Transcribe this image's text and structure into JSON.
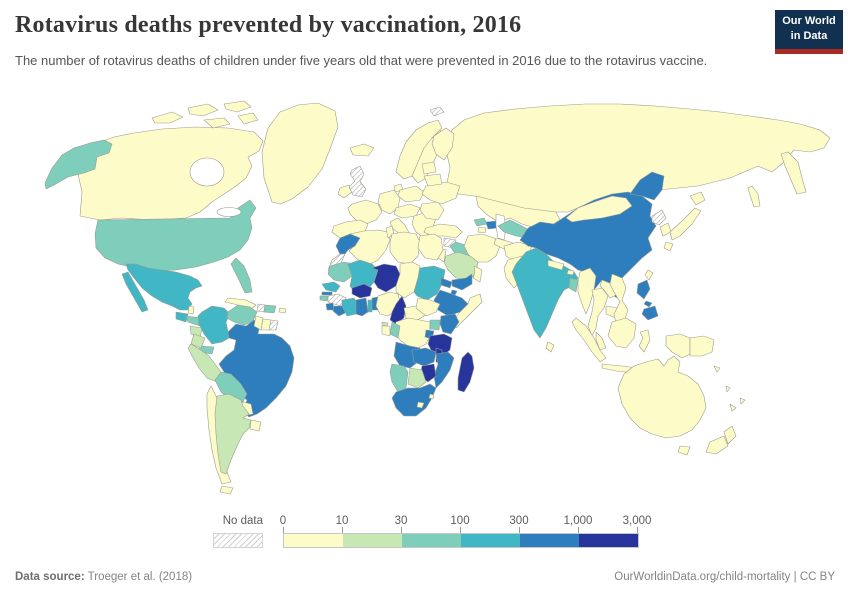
{
  "header": {
    "title": "Rotavirus deaths prevented by vaccination, 2016",
    "subtitle": "The number of rotavirus deaths of children under five years old that were prevented in 2016 due to the rotavirus vaccine.",
    "logo": {
      "line1": "Our World",
      "line2": "in Data",
      "bg_color": "#12304f",
      "stripe_color": "#a82c25"
    }
  },
  "legend": {
    "no_data_label": "No data",
    "tick_labels": [
      "0",
      "10",
      "30",
      "100",
      "300",
      "1,000",
      "3,000"
    ],
    "buckets": [
      "0-10",
      "10-30",
      "30-100",
      "100-300",
      "300-1,000",
      "1,000-3,000"
    ]
  },
  "map": {
    "palette": {
      "0-10": "#fdfbc7",
      "10-30": "#c7e8b4",
      "30-100": "#7fcdbb",
      "100-300": "#41b6c4",
      "300-1,000": "#2e7ebd",
      "1,000-3,000": "#27349c"
    },
    "no_data_key": "no-data",
    "border_color": "#9c9c90",
    "ocean_color": "#ffffff",
    "countries": {
      "russia": "0-10",
      "canada": "0-10",
      "greenland": "0-10",
      "united-states": "30-100",
      "mexico": "100-300",
      "guatemala": "100-300",
      "belize": "0-10",
      "honduras": "30-100",
      "nicaragua": "10-30",
      "costa-rica": "10-30",
      "panama": "30-100",
      "cuba": "0-10",
      "jamaica": "0-10",
      "haiti": "no-data",
      "dominican-republic": "30-100",
      "puerto-rico": "0-10",
      "brazil": "300-1,000",
      "colombia": "100-300",
      "venezuela": "30-100",
      "guyana": "0-10",
      "suriname": "0-10",
      "french-guiana": "no-data",
      "ecuador": "10-30",
      "peru": "10-30",
      "bolivia": "30-100",
      "paraguay": "0-10",
      "chile": "0-10",
      "argentina": "10-30",
      "uruguay": "0-10",
      "iceland": "0-10",
      "ireland": "0-10",
      "united-kingdom": "no-data",
      "norway": "0-10",
      "sweden": "0-10",
      "finland": "0-10",
      "denmark": "0-10",
      "france": "0-10",
      "spain": "0-10",
      "germany": "0-10",
      "poland": "0-10",
      "central-europe": "0-10",
      "italy": "0-10",
      "balkans": "0-10",
      "greece": "0-10",
      "romania-bulgaria": "0-10",
      "ukraine": "0-10",
      "belarus": "0-10",
      "baltics": "0-10",
      "svalbard": "no-data",
      "turkey": "0-10",
      "syria": "no-data",
      "israel-jordan": "0-10",
      "iraq": "30-100",
      "iran": "0-10",
      "saudi-arabia": "10-30",
      "yemen": "300-1,000",
      "oman": "0-10",
      "georgia": "30-100",
      "azerbaijan": "300-1,000",
      "armenia": "0-10",
      "kazakhstan": "0-10",
      "uzbekistan": "30-100",
      "turkmenistan": "0-10",
      "kyrgyzstan": "0-10",
      "tajikistan": "30-100",
      "afghanistan": "0-10",
      "pakistan": "0-10",
      "india": "100-300",
      "nepal": "0-10",
      "bhutan": "0-10",
      "bangladesh": "30-100",
      "sri-lanka": "0-10",
      "myanmar": "0-10",
      "thailand": "0-10",
      "laos": "0-10",
      "cambodia": "0-10",
      "vietnam": "0-10",
      "malaysia": "0-10",
      "china": "300-1,000",
      "mongolia": "0-10",
      "north-korea": "no-data",
      "south-korea": "0-10",
      "japan": "0-10",
      "taiwan": "0-10",
      "philippines": "300-1,000",
      "indonesia": "0-10",
      "papua-new-guinea": "0-10",
      "timor": "0-10",
      "australia": "0-10",
      "new-zealand": "0-10",
      "solomon-islands": "0-10",
      "vanuatu": "0-10",
      "fiji": "0-10",
      "new-caledonia": "0-10",
      "morocco": "300-1,000",
      "western-sahara": "no-data",
      "algeria": "0-10",
      "tunisia": "0-10",
      "libya": "0-10",
      "egypt": "0-10",
      "mauritania": "30-100",
      "mali": "100-300",
      "niger": "1,000-3,000",
      "chad": "0-10",
      "sudan": "100-300",
      "eritrea": "300-1,000",
      "djibouti": "300-1,000",
      "ethiopia": "300-1,000",
      "somalia": "0-10",
      "senegal": "100-300",
      "gambia": "300-1,000",
      "guinea-bissau": "30-100",
      "guinea": "no-data",
      "sierra-leone": "300-1,000",
      "liberia": "300-1,000",
      "cote-divoire": "100-300",
      "burkina-faso": "1,000-3,000",
      "ghana": "300-1,000",
      "togo": "100-300",
      "benin": "300-1,000",
      "nigeria": "0-10",
      "cameroon": "1,000-3,000",
      "central-african-republic": "0-10",
      "south-sudan": "0-10",
      "uganda": "30-100",
      "kenya": "300-1,000",
      "rwanda-burundi": "300-1,000",
      "drc": "0-10",
      "congo": "30-100",
      "gabon": "0-10",
      "equatorial-guinea": "10-30",
      "tanzania": "1,000-3,000",
      "angola": "300-1,000",
      "zambia": "300-1,000",
      "malawi": "1,000-3,000",
      "mozambique": "300-1,000",
      "zimbabwe": "1,000-3,000",
      "botswana": "10-30",
      "namibia": "30-100",
      "south-africa": "300-1,000",
      "lesotho": "0-10",
      "eswatini": "0-10",
      "madagascar": "1,000-3,000"
    }
  },
  "footer": {
    "source_label": "Data source:",
    "source_value": "Troeger et al. (2018)",
    "link_text": "OurWorldinData.org/child-mortality",
    "divider": "|",
    "license_text": "CC BY"
  }
}
